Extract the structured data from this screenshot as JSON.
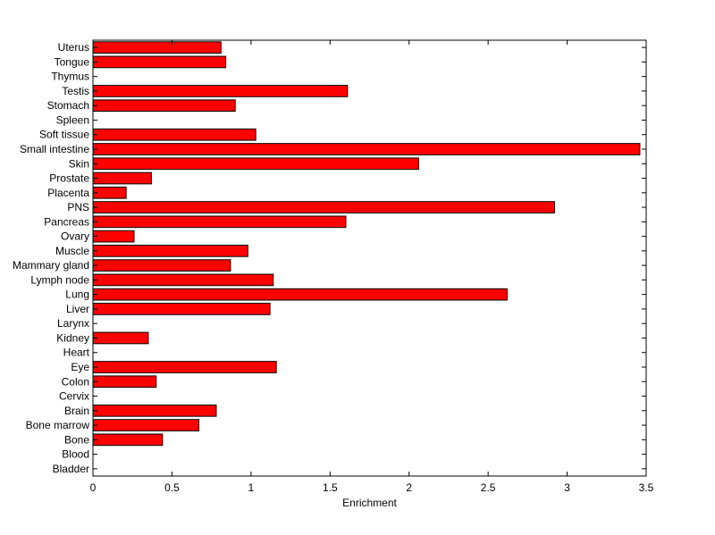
{
  "chart_data": {
    "type": "bar",
    "orientation": "horizontal",
    "title": "",
    "xlabel": "Enrichment",
    "ylabel": "",
    "xlim": [
      0,
      3.5
    ],
    "xticks": [
      0,
      0.5,
      1,
      1.5,
      2,
      2.5,
      3,
      3.5
    ],
    "xtick_labels": [
      "0",
      "0.5",
      "1",
      "1.5",
      "2",
      "2.5",
      "3",
      "3.5"
    ],
    "grid": false,
    "legend": "none",
    "bar_color": "#ff0000",
    "categories": [
      "Bladder",
      "Blood",
      "Bone",
      "Bone marrow",
      "Brain",
      "Cervix",
      "Colon",
      "Eye",
      "Heart",
      "Kidney",
      "Larynx",
      "Liver",
      "Lung",
      "Lymph node",
      "Mammary gland",
      "Muscle",
      "Ovary",
      "Pancreas",
      "PNS",
      "Placenta",
      "Prostate",
      "Skin",
      "Small intestine",
      "Soft tissue",
      "Spleen",
      "Stomach",
      "Testis",
      "Thymus",
      "Tongue",
      "Uterus"
    ],
    "values": [
      0,
      0,
      0.44,
      0.67,
      0.78,
      0,
      0.4,
      1.16,
      0,
      0.35,
      0,
      1.12,
      2.62,
      1.14,
      0.87,
      0.98,
      0.26,
      1.6,
      2.92,
      0.21,
      0.37,
      2.06,
      3.46,
      1.03,
      0,
      0.9,
      1.61,
      0,
      0.84,
      0.81
    ]
  }
}
